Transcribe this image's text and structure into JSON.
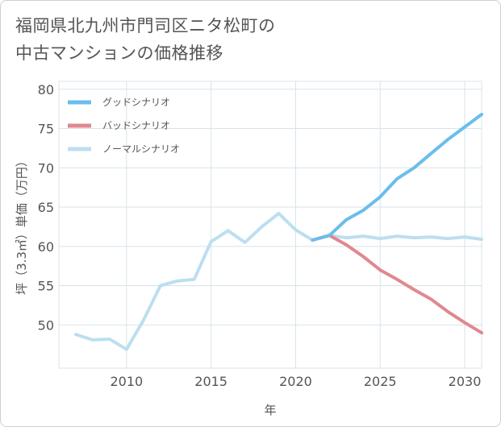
{
  "title_line1": "福岡県北九州市門司区ニタ松町の",
  "title_line2": "中古マンションの価格推移",
  "chart_data": {
    "type": "line",
    "title": "福岡県北九州市門司区ニタ松町の中古マンションの価格推移",
    "xlabel": "年",
    "ylabel": "坪（3.3㎡）単価（万円）",
    "xlim": [
      2006,
      2031
    ],
    "ylim": [
      44.5,
      81
    ],
    "xticks": [
      2010,
      2015,
      2020,
      2025,
      2030
    ],
    "yticks": [
      50,
      55,
      60,
      65,
      70,
      75,
      80
    ],
    "grid": true,
    "legend_position": "top-left",
    "series": [
      {
        "name": "グッドシナリオ",
        "color": "#6bbdeb",
        "x": [
          2021,
          2022,
          2023,
          2024,
          2025,
          2026,
          2027,
          2028,
          2029,
          2030,
          2031
        ],
        "y": [
          60.8,
          61.4,
          63.4,
          64.6,
          66.3,
          68.6,
          70.0,
          71.8,
          73.6,
          75.2,
          76.8
        ]
      },
      {
        "name": "バッドシナリオ",
        "color": "#e0888f",
        "x": [
          2021,
          2022,
          2023,
          2024,
          2025,
          2026,
          2027,
          2028,
          2029,
          2030,
          2031
        ],
        "y": [
          60.8,
          61.4,
          60.2,
          58.7,
          57.0,
          55.8,
          54.5,
          53.3,
          51.7,
          50.3,
          49.0
        ]
      },
      {
        "name": "ノーマルシナリオ",
        "color": "#bcdff0",
        "x": [
          2007,
          2008,
          2009,
          2010,
          2011,
          2012,
          2013,
          2014,
          2015,
          2016,
          2017,
          2018,
          2019,
          2020,
          2021,
          2022,
          2023,
          2024,
          2025,
          2026,
          2027,
          2028,
          2029,
          2030,
          2031
        ],
        "y": [
          48.8,
          48.1,
          48.2,
          46.9,
          50.6,
          55.0,
          55.6,
          55.8,
          60.6,
          62.0,
          60.5,
          62.5,
          64.2,
          62.1,
          60.8,
          61.4,
          61.1,
          61.3,
          61.0,
          61.3,
          61.1,
          61.2,
          61.0,
          61.2,
          60.9
        ]
      }
    ]
  }
}
